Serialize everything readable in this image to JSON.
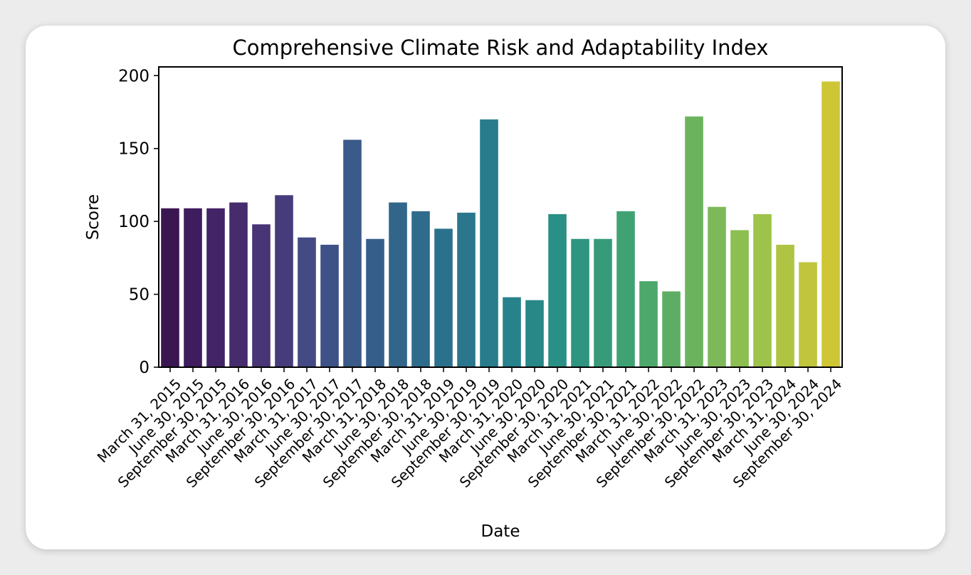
{
  "chart_data": {
    "type": "bar",
    "title": "Comprehensive Climate Risk and Adaptability Index",
    "xlabel": "Date",
    "ylabel": "Score",
    "ylim": [
      0,
      206
    ],
    "yticks": [
      0,
      50,
      100,
      150,
      200
    ],
    "grid": false,
    "legend": "none",
    "palette": "viridis",
    "categories": [
      "March 31, 2015",
      "June 30, 2015",
      "September 30, 2015",
      "March 31, 2016",
      "June 30, 2016",
      "September 30, 2016",
      "March 31, 2017",
      "June 30, 2017",
      "September 30, 2017",
      "March 31, 2018",
      "June 30, 2018",
      "September 30, 2018",
      "March 31, 2019",
      "June 30, 2019",
      "September 30, 2019",
      "March 31, 2020",
      "June 30, 2020",
      "September 30, 2020",
      "March 31, 2021",
      "June 30, 2021",
      "September 30, 2021",
      "March 31, 2022",
      "June 30, 2022",
      "September 30, 2022",
      "March 31, 2023",
      "June 30, 2023",
      "September 30, 2023",
      "March 31, 2024",
      "June 30, 2024",
      "September 30, 2024"
    ],
    "values": [
      109,
      109,
      109,
      113,
      98,
      118,
      89,
      84,
      156,
      88,
      113,
      107,
      95,
      106,
      170,
      48,
      46,
      105,
      88,
      88,
      107,
      59,
      52,
      172,
      110,
      94,
      105,
      84,
      72,
      196
    ],
    "colors": [
      "#3b1751",
      "#3e1c5d",
      "#432466",
      "#462b6d",
      "#483575",
      "#463c7c",
      "#434a84",
      "#3e5287",
      "#3a5a89",
      "#355f8a",
      "#31658a",
      "#2f6b8b",
      "#2b718c",
      "#2a768d",
      "#287c8c",
      "#27828b",
      "#278887",
      "#2a8f84",
      "#2f9580",
      "#379b7a",
      "#40a273",
      "#4da86b",
      "#5dae64",
      "#6cb35e",
      "#7db959",
      "#8cbe51",
      "#9dc34a",
      "#aec442",
      "#c0c53d",
      "#cfc635"
    ]
  }
}
